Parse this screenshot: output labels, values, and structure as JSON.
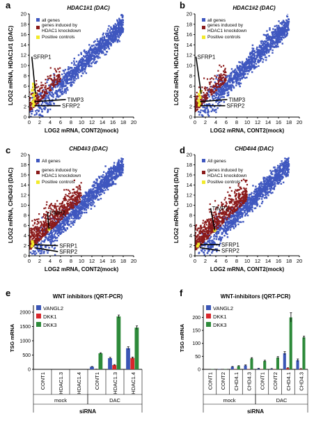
{
  "colors": {
    "all_genes": "#3f57bf",
    "induced": "#8b1a1a",
    "positive": "#f2ea2a",
    "vangl2": "#3a55b5",
    "dkk1": "#d8262a",
    "dkk3": "#2d8a3a",
    "axis": "#000000"
  },
  "chart_data": [
    {
      "panel": "a",
      "type": "scatter",
      "title": "HDAC1#1 (DAC)",
      "xlabel": "LOG2 mRNA, CONT2(mock)",
      "ylabel": "LOG2 mRNA, HDAC1#1 (DAC)",
      "xlim": [
        0,
        20
      ],
      "ylim": [
        0,
        20
      ],
      "xticks": [
        "0",
        "2",
        "4",
        "6",
        "8",
        "10",
        "12",
        "14",
        "16",
        "18",
        "20"
      ],
      "yticks": [
        "0",
        "2",
        "4",
        "6",
        "8",
        "10",
        "12",
        "14",
        "16",
        "18",
        "20"
      ],
      "legend": [
        "all genes",
        "genes induced by HDAC1 knockdown",
        "Positive controls"
      ],
      "induced_extent": 6,
      "annotations": [
        {
          "label": "SFRP1",
          "point": [
            1.2,
            4.5
          ],
          "text_at": [
            0.5,
            11.3
          ]
        },
        {
          "label": "TIMP3",
          "point": [
            1.0,
            3.0
          ],
          "text_at": [
            7.0,
            3.0
          ]
        },
        {
          "label": "SFRP2",
          "point": [
            1.0,
            2.2
          ],
          "text_at": [
            6.0,
            1.8
          ]
        }
      ],
      "positives": [
        [
          0.8,
          2.2
        ],
        [
          0.9,
          2.5
        ],
        [
          0.7,
          3.0
        ],
        [
          1.0,
          3.6
        ],
        [
          0.8,
          4.2
        ],
        [
          1.1,
          4.6
        ],
        [
          0.6,
          5.2
        ],
        [
          0.9,
          5.8
        ],
        [
          0.8,
          6.4
        ]
      ]
    },
    {
      "panel": "b",
      "type": "scatter",
      "title": "HDAC1#2 (DAC)",
      "xlabel": "LOG2 mRNA, CONT2(mock)",
      "ylabel": "LOG2 mRNA, HDAC1#2 (DAC)",
      "xlim": [
        0,
        20
      ],
      "ylim": [
        0,
        20
      ],
      "xticks": [
        "0",
        "2",
        "4",
        "6",
        "8",
        "10",
        "12",
        "14",
        "16",
        "18",
        "20"
      ],
      "yticks": [
        "0",
        "2",
        "4",
        "6",
        "8",
        "10",
        "12",
        "14",
        "16",
        "18",
        "20"
      ],
      "legend": [
        "all genes",
        "genes induced by HDAC1 knockdown",
        "Positive controls"
      ],
      "induced_extent": 6,
      "annotations": [
        {
          "label": "SFRP1",
          "point": [
            1.2,
            4.5
          ],
          "text_at": [
            0.2,
            11.3
          ]
        },
        {
          "label": "TIMP3",
          "point": [
            1.0,
            3.0
          ],
          "text_at": [
            6.2,
            3.0
          ]
        },
        {
          "label": "SFRP2",
          "point": [
            1.0,
            2.2
          ],
          "text_at": [
            5.8,
            1.8
          ]
        }
      ],
      "positives": [
        [
          0.8,
          2.3
        ],
        [
          0.9,
          2.7
        ],
        [
          0.7,
          3.2
        ],
        [
          1.0,
          3.8
        ],
        [
          0.8,
          4.4
        ],
        [
          1.1,
          5.0
        ]
      ]
    },
    {
      "panel": "c",
      "type": "scatter",
      "title": "CHD4#3 (DAC)",
      "xlabel": "LOG2 mRNA, CONT2(mock)",
      "ylabel": "LOG2 mRNA, CHD4#3 (DAC)",
      "xlim": [
        0,
        20
      ],
      "ylim": [
        0,
        20
      ],
      "xticks": [
        "0",
        "2",
        "4",
        "6",
        "8",
        "10",
        "12",
        "14",
        "16",
        "18",
        "20"
      ],
      "yticks": [
        "0",
        "2",
        "4",
        "6",
        "8",
        "10",
        "12",
        "14",
        "16",
        "18",
        "20"
      ],
      "legend": [
        "All genes",
        "genes induced by HDAC1 knockdown",
        "Positive controls"
      ],
      "induced_extent": 10,
      "annotations": [
        {
          "label": "TIMP2",
          "point": [
            3.8,
            5.2
          ],
          "text_at": [
            3.5,
            8.1
          ]
        },
        {
          "label": "SFRP1",
          "point": [
            1.0,
            2.2
          ],
          "text_at": [
            5.5,
            1.6
          ]
        },
        {
          "label": "SFRP2",
          "point": [
            1.0,
            1.6
          ],
          "text_at": [
            5.5,
            0.4
          ]
        }
      ],
      "positives": [
        [
          0.5,
          1.9
        ],
        [
          0.7,
          2.3
        ],
        [
          0.6,
          2.8
        ],
        [
          3.8,
          5.2
        ]
      ]
    },
    {
      "panel": "d",
      "type": "scatter",
      "title": "CHD4#4 (DAC)",
      "xlabel": "LOG2 mRNA, CONT2(mock)",
      "ylabel": "LOG2 mRNA, CHD4#4 (DAC)",
      "xlim": [
        0,
        20
      ],
      "ylim": [
        0,
        20
      ],
      "xticks": [
        "0",
        "2",
        "4",
        "6",
        "8",
        "10",
        "12",
        "14",
        "16",
        "18",
        "20"
      ],
      "yticks": [
        "0",
        "2",
        "4",
        "6",
        "8",
        "10",
        "12",
        "14",
        "16",
        "18",
        "20"
      ],
      "legend": [
        "All genes",
        "genes induced by HDAC1 knockdown",
        "Positive controls"
      ],
      "induced_extent": 10,
      "annotations": [
        {
          "label": "TIMP2",
          "point": [
            3.8,
            5.0
          ],
          "text_at": [
            3.0,
            9.0
          ]
        },
        {
          "label": "SFRP1",
          "point": [
            1.0,
            2.2
          ],
          "text_at": [
            4.8,
            1.8
          ]
        },
        {
          "label": "SFRP2",
          "point": [
            1.0,
            1.6
          ],
          "text_at": [
            4.8,
            0.6
          ]
        }
      ],
      "positives": [
        [
          0.5,
          1.9
        ],
        [
          0.7,
          2.3
        ],
        [
          3.8,
          5.0
        ]
      ]
    },
    {
      "panel": "e",
      "type": "bar",
      "title": "WNT inhibitors (QRT-PCR)",
      "ylabel": "TSG mRNA",
      "xlabel": "siRNA",
      "ylim": [
        0,
        2000
      ],
      "legend": [
        "VANGL2",
        "DKK1",
        "DKK3"
      ],
      "categories": [
        "CONT1",
        "HDAC1.3",
        "HDAC1.4",
        "CONT1",
        "HDAC1.3",
        "HDAC1.4"
      ],
      "groups": [
        {
          "label": "mock",
          "from": 0,
          "to": 2
        },
        {
          "label": "DAC",
          "from": 3,
          "to": 5
        }
      ],
      "series": [
        {
          "name": "VANGL2",
          "values": [
            0,
            0,
            0,
            90,
            390,
            740
          ],
          "errors": [
            0,
            0,
            0,
            10,
            30,
            50
          ]
        },
        {
          "name": "DKK1",
          "values": [
            0,
            0,
            0,
            5,
            150,
            400
          ],
          "errors": [
            0,
            0,
            0,
            2,
            15,
            30
          ]
        },
        {
          "name": "DKK3",
          "values": [
            0,
            0,
            0,
            560,
            1850,
            1460
          ],
          "errors": [
            0,
            0,
            0,
            20,
            50,
            60
          ]
        }
      ]
    },
    {
      "panel": "f",
      "type": "bar",
      "title": "WNT-inhibitors (QRT-PCR)",
      "ylabel": "TSG mRNA",
      "xlabel": "siRNA",
      "ylim": [
        0,
        220
      ],
      "legend": [
        "VANGL2",
        "DKK1",
        "DKK3"
      ],
      "categories": [
        "CONT1",
        "CONT2",
        "CHD4.1",
        "CHD4.3",
        "CONT1",
        "CONT2",
        "CHD4.1",
        "CHD4.3"
      ],
      "groups": [
        {
          "label": "mock",
          "from": 0,
          "to": 3
        },
        {
          "label": "DAC",
          "from": 4,
          "to": 7
        }
      ],
      "series": [
        {
          "name": "VANGL2",
          "values": [
            0,
            1,
            10,
            15,
            3,
            2,
            62,
            35
          ],
          "errors": [
            0,
            0,
            1,
            2,
            1,
            1,
            6,
            5
          ]
        },
        {
          "name": "DKK1",
          "values": [
            0,
            0,
            1,
            1,
            1,
            1,
            5,
            2
          ],
          "errors": [
            0,
            0,
            0,
            0,
            0,
            0,
            1,
            1
          ]
        },
        {
          "name": "DKK3",
          "values": [
            1,
            1,
            12,
            42,
            32,
            45,
            200,
            123
          ],
          "errors": [
            0,
            0,
            2,
            3,
            3,
            4,
            18,
            5
          ]
        }
      ]
    }
  ],
  "panel_letters": [
    "a",
    "b",
    "c",
    "d",
    "e",
    "f"
  ]
}
